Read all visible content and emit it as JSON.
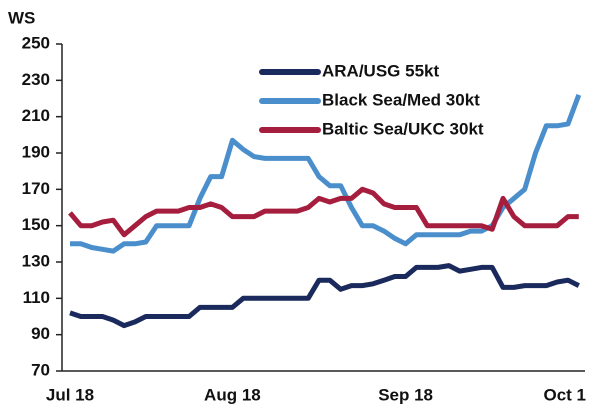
{
  "chart_data": {
    "type": "line",
    "y_label": "WS",
    "categories": [
      "Jul 18",
      null,
      null,
      null,
      null,
      null,
      null,
      null,
      null,
      null,
      null,
      null,
      null,
      null,
      null,
      "Aug 18",
      null,
      null,
      null,
      null,
      null,
      null,
      null,
      null,
      null,
      null,
      null,
      null,
      null,
      null,
      null,
      "Sep 18",
      null,
      null,
      null,
      null,
      null,
      null,
      null,
      null,
      null,
      null,
      null,
      null,
      null,
      null,
      "Oct 1",
      null
    ],
    "series": [
      {
        "name": "ARA/USG 55kt",
        "color": "#1b2a5c",
        "values": [
          102,
          100,
          100,
          100,
          98,
          95,
          97,
          100,
          100,
          100,
          100,
          100,
          105,
          105,
          105,
          105,
          110,
          110,
          110,
          110,
          110,
          110,
          110,
          120,
          120,
          115,
          117,
          117,
          118,
          120,
          122,
          122,
          127,
          127,
          127,
          128,
          125,
          126,
          127,
          127,
          116,
          116,
          117,
          117,
          117,
          119,
          120,
          117
        ]
      },
      {
        "name": "Black Sea/Med 30kt",
        "color": "#4a8fcc",
        "values": [
          140,
          140,
          138,
          137,
          136,
          140,
          140,
          141,
          150,
          150,
          150,
          150,
          165,
          177,
          177,
          197,
          192,
          188,
          187,
          187,
          187,
          187,
          187,
          177,
          172,
          172,
          160,
          150,
          150,
          147,
          143,
          140,
          145,
          145,
          145,
          145,
          145,
          147,
          147,
          150,
          160,
          165,
          170,
          190,
          205,
          205,
          206,
          222
        ]
      },
      {
        "name": "Baltic Sea/UKC 30kt",
        "color": "#a51e3e",
        "values": [
          157,
          150,
          150,
          152,
          153,
          145,
          150,
          155,
          158,
          158,
          158,
          160,
          160,
          162,
          160,
          155,
          155,
          155,
          158,
          158,
          158,
          158,
          160,
          165,
          163,
          165,
          165,
          170,
          168,
          162,
          160,
          160,
          160,
          150,
          150,
          150,
          150,
          150,
          150,
          148,
          165,
          155,
          150,
          150,
          150,
          150,
          155,
          155
        ]
      }
    ],
    "ylim": [
      70,
      250
    ],
    "yticks": [
      70,
      90,
      110,
      130,
      150,
      170,
      190,
      210,
      230,
      250
    ],
    "grid": false,
    "legend": "upper center"
  }
}
